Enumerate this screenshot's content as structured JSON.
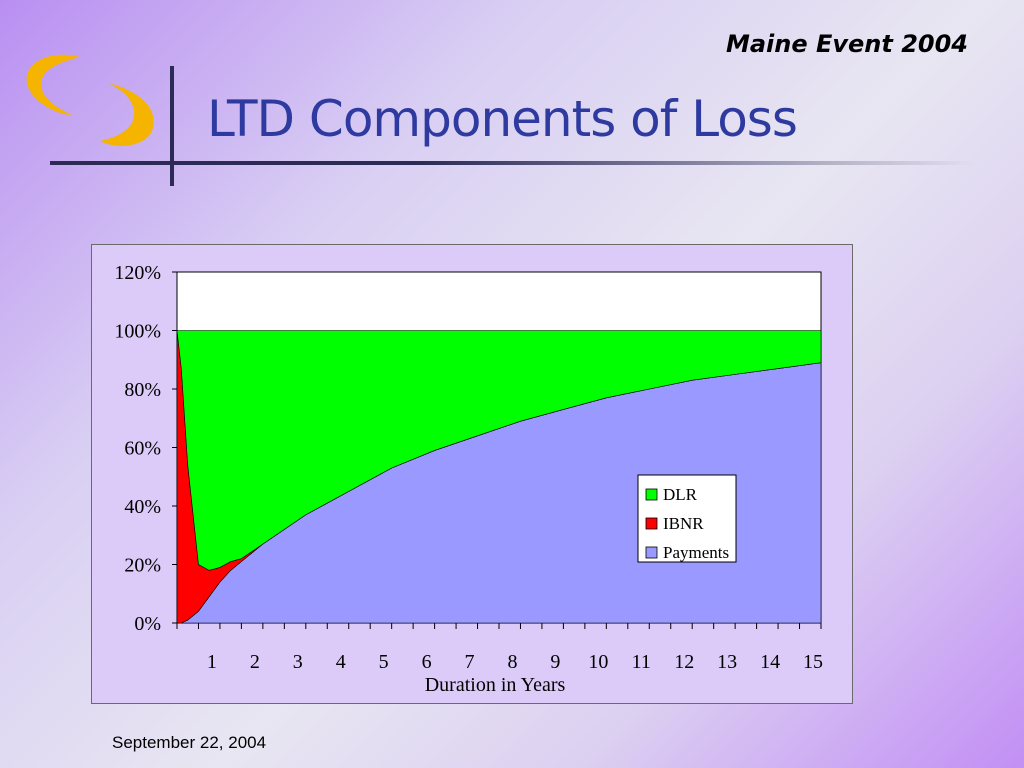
{
  "header": {
    "event_label": "Maine Event 2004",
    "title": "LTD Components of Loss"
  },
  "footer": {
    "date": "September 22, 2004"
  },
  "logo": {
    "icon": "crescent-swoosh-logo-icon",
    "color": "#f5b400"
  },
  "chart_data": {
    "type": "area",
    "stacked": true,
    "title": "",
    "xlabel": "Duration in Years",
    "ylabel": "",
    "xlim": [
      0,
      15
    ],
    "ylim": [
      0,
      1.2
    ],
    "y_ticks": [
      "0%",
      "20%",
      "40%",
      "60%",
      "80%",
      "100%",
      "120%"
    ],
    "x_tick_labels": [
      "1",
      "2",
      "3",
      "4",
      "5",
      "6",
      "7",
      "8",
      "9",
      "10",
      "11",
      "12",
      "13",
      "14",
      "15"
    ],
    "legend_position": "lower-right",
    "grid": false,
    "x": [
      0,
      0.1,
      0.25,
      0.5,
      0.75,
      1.0,
      1.25,
      1.5,
      2.0,
      2.5,
      3,
      3.5,
      4,
      5,
      6,
      7,
      8,
      9,
      10,
      11,
      12,
      13,
      14,
      15
    ],
    "series": [
      {
        "name": "Payments",
        "color": "#9999ff",
        "values": [
          0,
          0.0,
          0.01,
          0.04,
          0.09,
          0.14,
          0.18,
          0.21,
          0.27,
          0.32,
          0.37,
          0.41,
          0.45,
          0.53,
          0.59,
          0.64,
          0.69,
          0.73,
          0.77,
          0.8,
          0.83,
          0.85,
          0.87,
          0.89
        ]
      },
      {
        "name": "IBNR",
        "color": "#ff0000",
        "values": [
          1.0,
          0.87,
          0.53,
          0.16,
          0.09,
          0.05,
          0.03,
          0.01,
          0,
          0,
          0,
          0,
          0,
          0,
          0,
          0,
          0,
          0,
          0,
          0,
          0,
          0,
          0,
          0
        ]
      },
      {
        "name": "DLR",
        "color": "#00ff00",
        "values": [
          0,
          0.13,
          0.46,
          0.8,
          0.82,
          0.81,
          0.79,
          0.78,
          0.73,
          0.68,
          0.63,
          0.59,
          0.55,
          0.47,
          0.41,
          0.36,
          0.31,
          0.27,
          0.23,
          0.2,
          0.17,
          0.15,
          0.13,
          0.11
        ]
      }
    ],
    "legend_order": [
      "DLR",
      "IBNR",
      "Payments"
    ]
  }
}
